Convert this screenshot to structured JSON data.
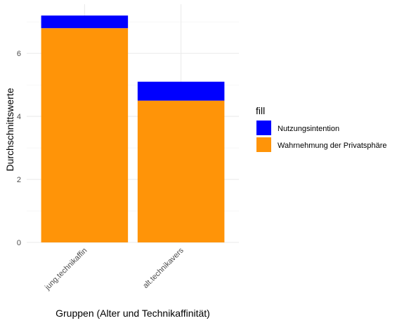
{
  "chart_data": {
    "type": "bar",
    "stacked": true,
    "categories": [
      "jung.technikaffin",
      "alt.technikavers"
    ],
    "series": [
      {
        "name": "Nutzungsintention",
        "values": [
          0.4,
          0.6
        ],
        "color": "#0000ff"
      },
      {
        "name": "Wahrnehmung der Privatsphäre",
        "values": [
          6.8,
          4.5
        ],
        "color": "#ff9408"
      }
    ],
    "xlabel": "Gruppen (Alter und Technikaffinität)",
    "ylabel": "Durchschnittswerte",
    "ylim": [
      0,
      7.56
    ],
    "yticks": [
      0,
      2,
      4,
      6
    ],
    "grid": true,
    "legend": {
      "title": "fill",
      "position": "right"
    }
  }
}
